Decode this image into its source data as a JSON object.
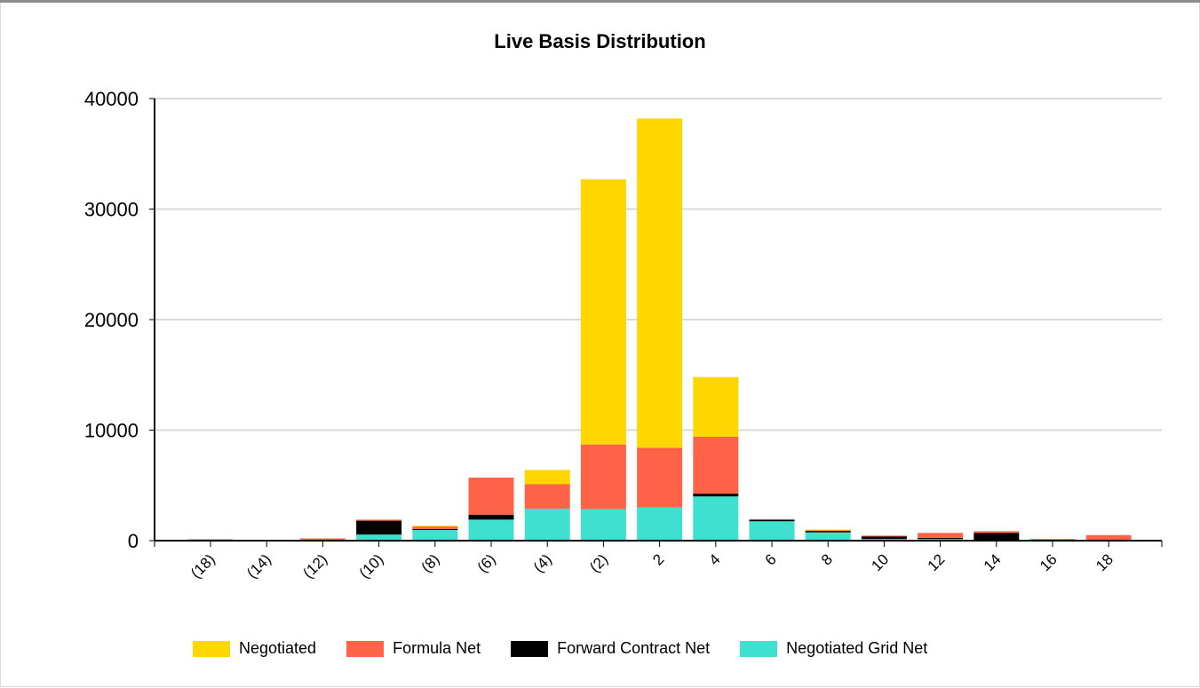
{
  "chart_data": {
    "type": "bar",
    "stacked": true,
    "title": "Live Basis Distribution",
    "xlabel": "",
    "ylabel": "",
    "ylim": [
      0,
      40000
    ],
    "yticks": [
      "0",
      "10000",
      "20000",
      "30000",
      "40000"
    ],
    "grid": true,
    "legend_position": "bottom",
    "categories": [
      "(18)",
      "(14)",
      "(12)",
      "(10)",
      "(8)",
      "(6)",
      "(4)",
      "(2)",
      "2",
      "4",
      "6",
      "8",
      "10",
      "12",
      "14",
      "16",
      "18"
    ],
    "series": [
      {
        "name": "Negotiated Grid Net",
        "color": "#40E0D0",
        "values": [
          0,
          0,
          0,
          550,
          1000,
          1900,
          2900,
          2850,
          3000,
          4000,
          1750,
          750,
          150,
          150,
          0,
          0,
          0
        ]
      },
      {
        "name": "Forward Contract Net",
        "color": "#000000",
        "values": [
          100,
          50,
          0,
          1250,
          50,
          450,
          0,
          0,
          0,
          250,
          150,
          150,
          250,
          100,
          700,
          0,
          0
        ]
      },
      {
        "name": "Formula Net",
        "color": "#FF6347",
        "values": [
          0,
          0,
          200,
          100,
          250,
          3350,
          2200,
          5850,
          5400,
          5150,
          0,
          50,
          50,
          450,
          150,
          150,
          500
        ]
      },
      {
        "name": "Negotiated",
        "color": "#FFD700",
        "values": [
          0,
          0,
          0,
          0,
          50,
          0,
          1300,
          24000,
          29800,
          5400,
          0,
          50,
          0,
          0,
          0,
          0,
          0
        ]
      }
    ],
    "legend_order": [
      "Negotiated",
      "Formula Net",
      "Forward Contract Net",
      "Negotiated Grid Net"
    ]
  }
}
